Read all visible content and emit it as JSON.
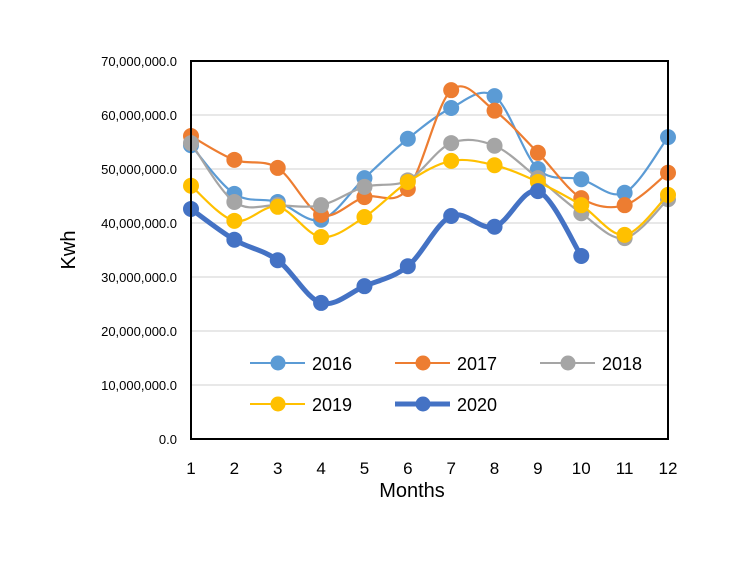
{
  "chart_data": {
    "type": "line",
    "title": "",
    "xlabel": "Months",
    "ylabel": "Kwh",
    "x": [
      1,
      2,
      3,
      4,
      5,
      6,
      7,
      8,
      9,
      10,
      11,
      12
    ],
    "x_tick_labels": [
      "1",
      "2",
      "3",
      "4",
      "5",
      "6",
      "7",
      "8",
      "9",
      "10",
      "11",
      "12"
    ],
    "ylim": [
      0,
      70000000
    ],
    "y_ticks": [
      0,
      10000000,
      20000000,
      30000000,
      40000000,
      50000000,
      60000000,
      70000000
    ],
    "y_tick_labels": [
      "0.0",
      "10,000,000.0",
      "20,000,000.0",
      "30,000,000.0",
      "40,000,000.0",
      "50,000,000.0",
      "60,000,000.0",
      "70,000,000.0"
    ],
    "grid": "horizontal",
    "legend_position": "inside-bottom",
    "smooth": true,
    "series": [
      {
        "name": "2016",
        "color": "#5B9BD5",
        "emphasis": false,
        "values": [
          54400000,
          45400000,
          43900000,
          40600000,
          48300000,
          55600000,
          61300000,
          63500000,
          50000000,
          48100000,
          45600000,
          55900000
        ]
      },
      {
        "name": "2017",
        "color": "#ED7D31",
        "emphasis": false,
        "values": [
          56100000,
          51700000,
          50200000,
          41500000,
          44800000,
          46300000,
          64600000,
          60800000,
          53000000,
          44600000,
          43300000,
          49300000
        ]
      },
      {
        "name": "2018",
        "color": "#A5A5A5",
        "emphasis": false,
        "values": [
          54800000,
          43900000,
          43300000,
          43300000,
          46700000,
          47900000,
          54800000,
          54300000,
          48300000,
          41800000,
          37200000,
          44400000
        ]
      },
      {
        "name": "2019",
        "color": "#FFC000",
        "emphasis": false,
        "values": [
          46900000,
          40400000,
          43000000,
          37400000,
          41100000,
          47600000,
          51500000,
          50700000,
          47600000,
          43300000,
          37800000,
          45200000
        ]
      },
      {
        "name": "2020",
        "color": "#4472C4",
        "emphasis": true,
        "values": [
          42600000,
          36900000,
          33100000,
          25200000,
          28300000,
          32000000,
          41300000,
          39300000,
          45900000,
          33900000,
          null,
          null
        ]
      }
    ]
  }
}
